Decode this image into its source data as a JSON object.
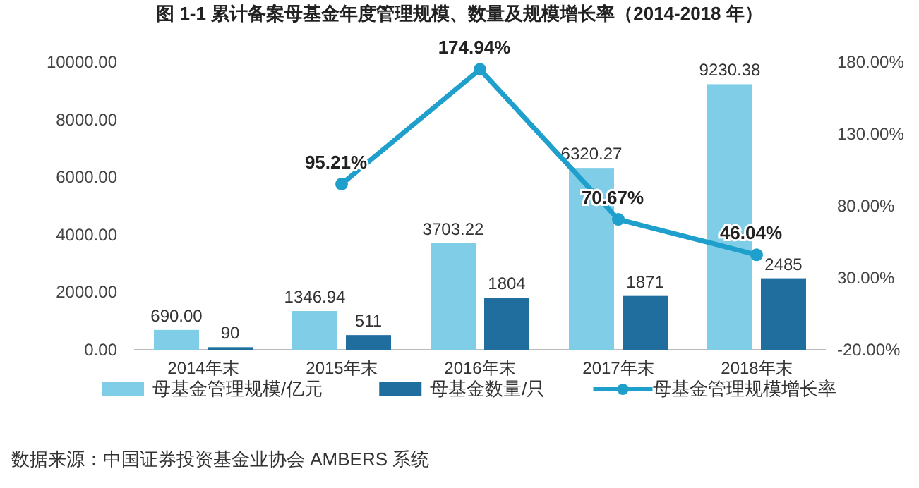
{
  "chart_data": {
    "type": "bar",
    "title": "图 1-1  累计备案母基金年度管理规模、数量及规模增长率（2014-2018 年）",
    "categories": [
      "2014年末",
      "2015年末",
      "2016年末",
      "2017年末",
      "2018年末"
    ],
    "series": [
      {
        "name": "母基金管理规模/亿元",
        "type": "bar",
        "color": "#7fcde6",
        "values": [
          690,
          1346.94,
          3703.22,
          6320.27,
          9230.38
        ],
        "value_labels": [
          "690.00",
          "1346.94",
          "3703.22",
          "6320.27",
          "9230.38"
        ]
      },
      {
        "name": "母基金数量/只",
        "type": "bar",
        "color": "#1f6e9e",
        "values": [
          90,
          511,
          1804,
          1871,
          2485
        ],
        "value_labels": [
          "90",
          "511",
          "1804",
          "1871",
          "2485"
        ]
      },
      {
        "name": "母基金管理规模增长率",
        "type": "line",
        "axis": "y2",
        "color": "#1fa0cc",
        "marker": "circle",
        "values": [
          null,
          95.21,
          174.94,
          70.67,
          46.04
        ],
        "value_labels": [
          null,
          "95.21%",
          "174.94%",
          "70.67%",
          "46.04%"
        ]
      }
    ],
    "ylim": [
      0,
      10000
    ],
    "yticks": [
      {
        "value": 0,
        "label": "0.00"
      },
      {
        "value": 2000,
        "label": "2000.00"
      },
      {
        "value": 4000,
        "label": "4000.00"
      },
      {
        "value": 6000,
        "label": "6000.00"
      },
      {
        "value": 8000,
        "label": "8000.00"
      },
      {
        "value": 10000,
        "label": "10000.00"
      }
    ],
    "y2lim": [
      -20,
      180
    ],
    "y2ticks": [
      {
        "value": -20,
        "label": "-20.00%"
      },
      {
        "value": 30,
        "label": "30.00%"
      },
      {
        "value": 80,
        "label": "80.00%"
      },
      {
        "value": 130,
        "label": "130.00%"
      },
      {
        "value": 180,
        "label": "180.00%"
      }
    ],
    "legend": "bottom",
    "annotations": [
      "数据来源：中国证券投资基金业协会 AMBERS 系统"
    ]
  }
}
